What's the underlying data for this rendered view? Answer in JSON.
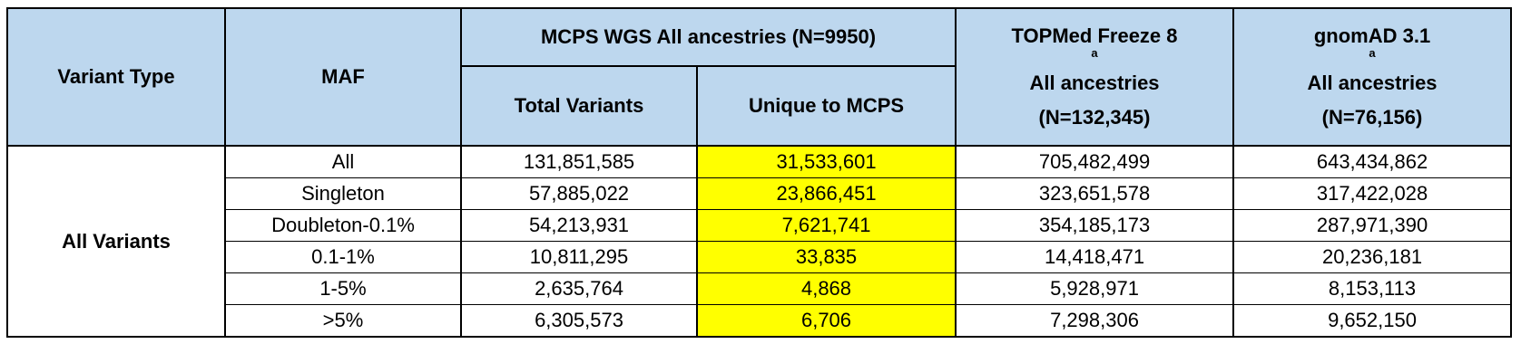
{
  "header": {
    "variant_type": "Variant Type",
    "maf": "MAF",
    "mcps_group": "MCPS WGS All ancestries (N=9950)",
    "total_variants": "Total Variants",
    "unique_to_mcps": "Unique to MCPS",
    "topmed_title": "TOPMed Freeze 8",
    "topmed_sup": "a",
    "topmed_sub1": "All ancestries",
    "topmed_sub2": "(N=132,345)",
    "gnomad_title": "gnomAD 3.1",
    "gnomad_sup": "a",
    "gnomad_sub1": "All ancestries",
    "gnomad_sub2": "(N=76,156)"
  },
  "variant_group": "All Variants",
  "rows": [
    {
      "maf": "All",
      "total": "131,851,585",
      "unique": "31,533,601",
      "topmed": "705,482,499",
      "gnomad": "643,434,862"
    },
    {
      "maf": "Singleton",
      "total": "57,885,022",
      "unique": "23,866,451",
      "topmed": "323,651,578",
      "gnomad": "317,422,028"
    },
    {
      "maf": "Doubleton-0.1%",
      "total": "54,213,931",
      "unique": "7,621,741",
      "topmed": "354,185,173",
      "gnomad": "287,971,390"
    },
    {
      "maf": "0.1-1%",
      "total": "10,811,295",
      "unique": "33,835",
      "topmed": "14,418,471",
      "gnomad": "20,236,181"
    },
    {
      "maf": "1-5%",
      "total": "2,635,764",
      "unique": "4,868",
      "topmed": "5,928,971",
      "gnomad": "8,153,113"
    },
    {
      "maf": ">5%",
      "total": "6,305,573",
      "unique": "6,706",
      "topmed": "7,298,306",
      "gnomad": "9,652,150"
    }
  ],
  "colors": {
    "header_bg": "#bdd7ee",
    "highlight": "#ffff00"
  }
}
